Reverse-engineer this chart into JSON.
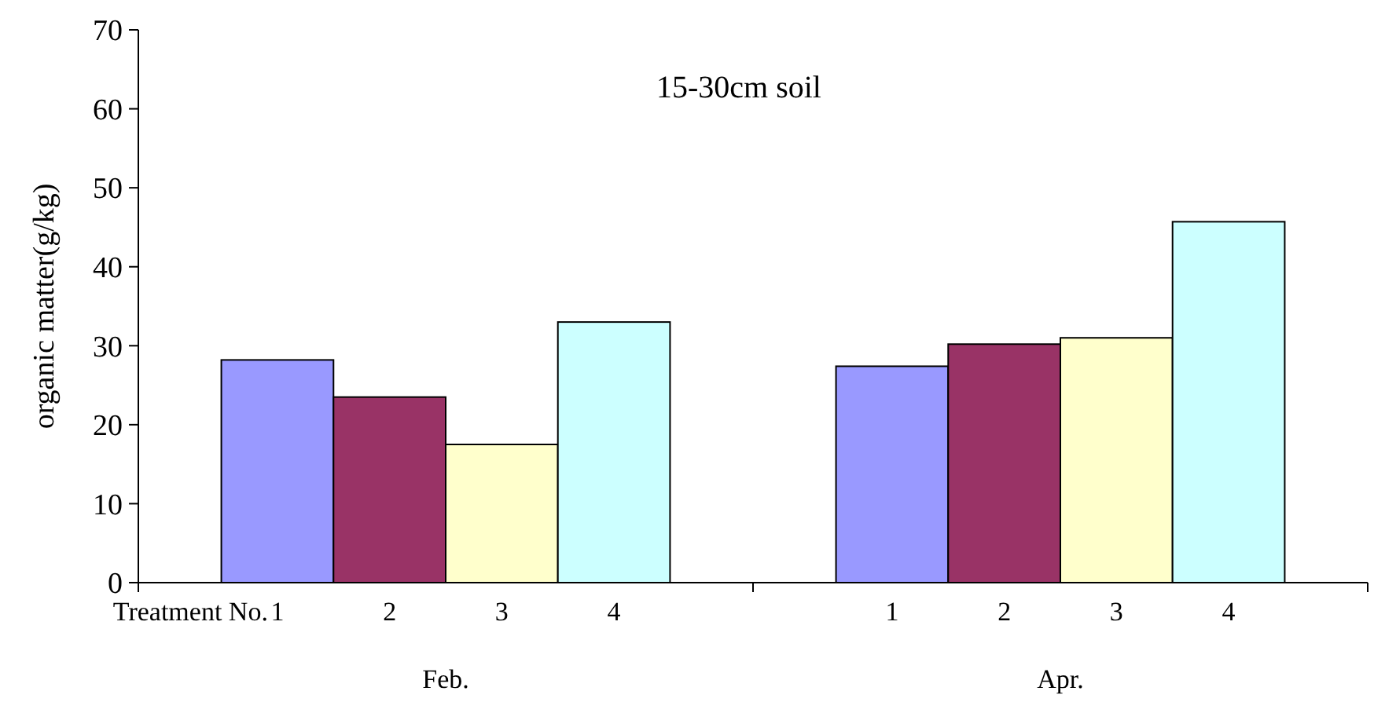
{
  "chart_data": {
    "type": "bar",
    "title": "15-30cm soil",
    "ylabel": "organic matter(g/kg)",
    "categories": [
      "Feb.",
      "Apr."
    ],
    "series": [
      {
        "name": "1",
        "color": "#9999ff",
        "values": [
          28.2,
          27.4
        ]
      },
      {
        "name": "2",
        "color": "#993366",
        "values": [
          23.5,
          30.2
        ]
      },
      {
        "name": "3",
        "color": "#ffffcc",
        "values": [
          17.5,
          31
        ]
      },
      {
        "name": "4",
        "color": "#ccffff",
        "values": [
          33,
          45.7
        ]
      }
    ],
    "annotations": [
      "Treatment No."
    ],
    "ylim": [
      0,
      70
    ],
    "yticks": [
      0,
      10,
      20,
      30,
      40,
      50,
      60,
      70
    ],
    "grid": false,
    "legend": false
  }
}
